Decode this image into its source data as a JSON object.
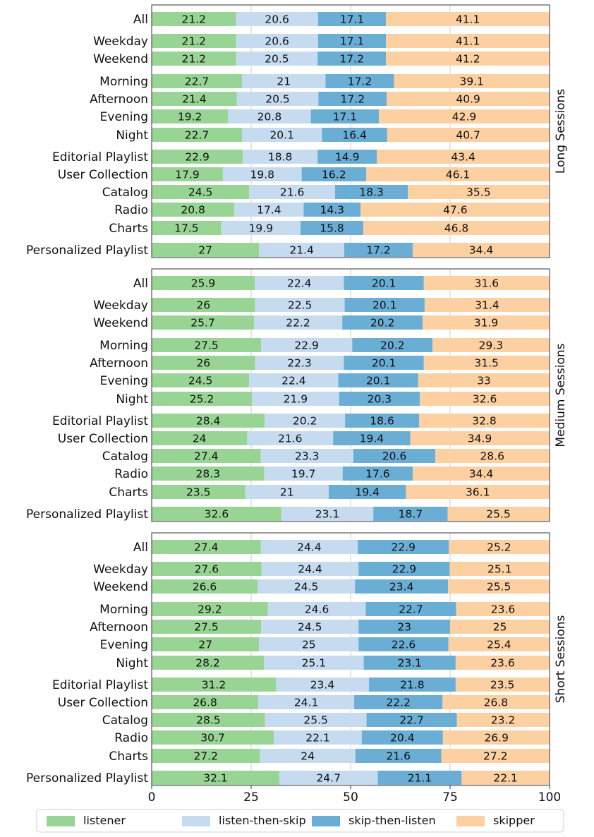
{
  "chart_data": {
    "type": "bar",
    "orientation": "horizontal",
    "stacked": true,
    "xlim": [
      0,
      100
    ],
    "xticks": [
      "0",
      "25",
      "50",
      "75",
      "100"
    ],
    "grid": true,
    "legend_placement": "bottom",
    "series_names": [
      "listener",
      "listen-then-skip",
      "skip-then-listen",
      "skipper"
    ],
    "colors": [
      "#98d594",
      "#c6dbef",
      "#6aaed6",
      "#fdd0a2"
    ],
    "categories": [
      "All",
      "Weekday",
      "Weekend",
      "Morning",
      "Afternoon",
      "Evening",
      "Night",
      "Editorial Playlist",
      "User Collection",
      "Catalog",
      "Radio",
      "Charts",
      "Personalized Playlist"
    ],
    "panels": [
      {
        "label": "Long Sessions",
        "values": [
          [
            21.2,
            20.6,
            17.1,
            41.1
          ],
          [
            21.2,
            20.6,
            17.1,
            41.1
          ],
          [
            21.2,
            20.5,
            17.2,
            41.2
          ],
          [
            22.7,
            21,
            17.2,
            39.1
          ],
          [
            21.4,
            20.5,
            17.2,
            40.9
          ],
          [
            19.2,
            20.8,
            17.1,
            42.9
          ],
          [
            22.7,
            20.1,
            16.4,
            40.7
          ],
          [
            22.9,
            18.8,
            14.9,
            43.4
          ],
          [
            17.9,
            19.8,
            16.2,
            46.1
          ],
          [
            24.5,
            21.6,
            18.3,
            35.5
          ],
          [
            20.8,
            17.4,
            14.3,
            47.6
          ],
          [
            17.5,
            19.9,
            15.8,
            46.8
          ],
          [
            27,
            21.4,
            17.2,
            34.4
          ]
        ]
      },
      {
        "label": "Medium Sessions",
        "values": [
          [
            25.9,
            22.4,
            20.1,
            31.6
          ],
          [
            26,
            22.5,
            20.1,
            31.4
          ],
          [
            25.7,
            22.2,
            20.2,
            31.9
          ],
          [
            27.5,
            22.9,
            20.2,
            29.3
          ],
          [
            26,
            22.3,
            20.1,
            31.5
          ],
          [
            24.5,
            22.4,
            20.1,
            33
          ],
          [
            25.2,
            21.9,
            20.3,
            32.6
          ],
          [
            28.4,
            20.2,
            18.6,
            32.8
          ],
          [
            24,
            21.6,
            19.4,
            34.9
          ],
          [
            27.4,
            23.3,
            20.6,
            28.6
          ],
          [
            28.3,
            19.7,
            17.6,
            34.4
          ],
          [
            23.5,
            21,
            19.4,
            36.1
          ],
          [
            32.6,
            23.1,
            18.7,
            25.5
          ]
        ]
      },
      {
        "label": "Short Sessions",
        "values": [
          [
            27.4,
            24.4,
            22.9,
            25.2
          ],
          [
            27.6,
            24.4,
            22.9,
            25.1
          ],
          [
            26.6,
            24.5,
            23.4,
            25.5
          ],
          [
            29.2,
            24.6,
            22.7,
            23.6
          ],
          [
            27.5,
            24.5,
            23,
            25
          ],
          [
            27,
            25,
            22.6,
            25.4
          ],
          [
            28.2,
            25.1,
            23.1,
            23.6
          ],
          [
            31.2,
            23.4,
            21.8,
            23.5
          ],
          [
            26.8,
            24.1,
            22.2,
            26.8
          ],
          [
            28.5,
            25.5,
            22.7,
            23.2
          ],
          [
            30.7,
            22.1,
            20.4,
            26.9
          ],
          [
            27.2,
            24,
            21.6,
            27.2
          ],
          [
            32.1,
            24.7,
            21.1,
            22.1
          ]
        ]
      }
    ]
  }
}
